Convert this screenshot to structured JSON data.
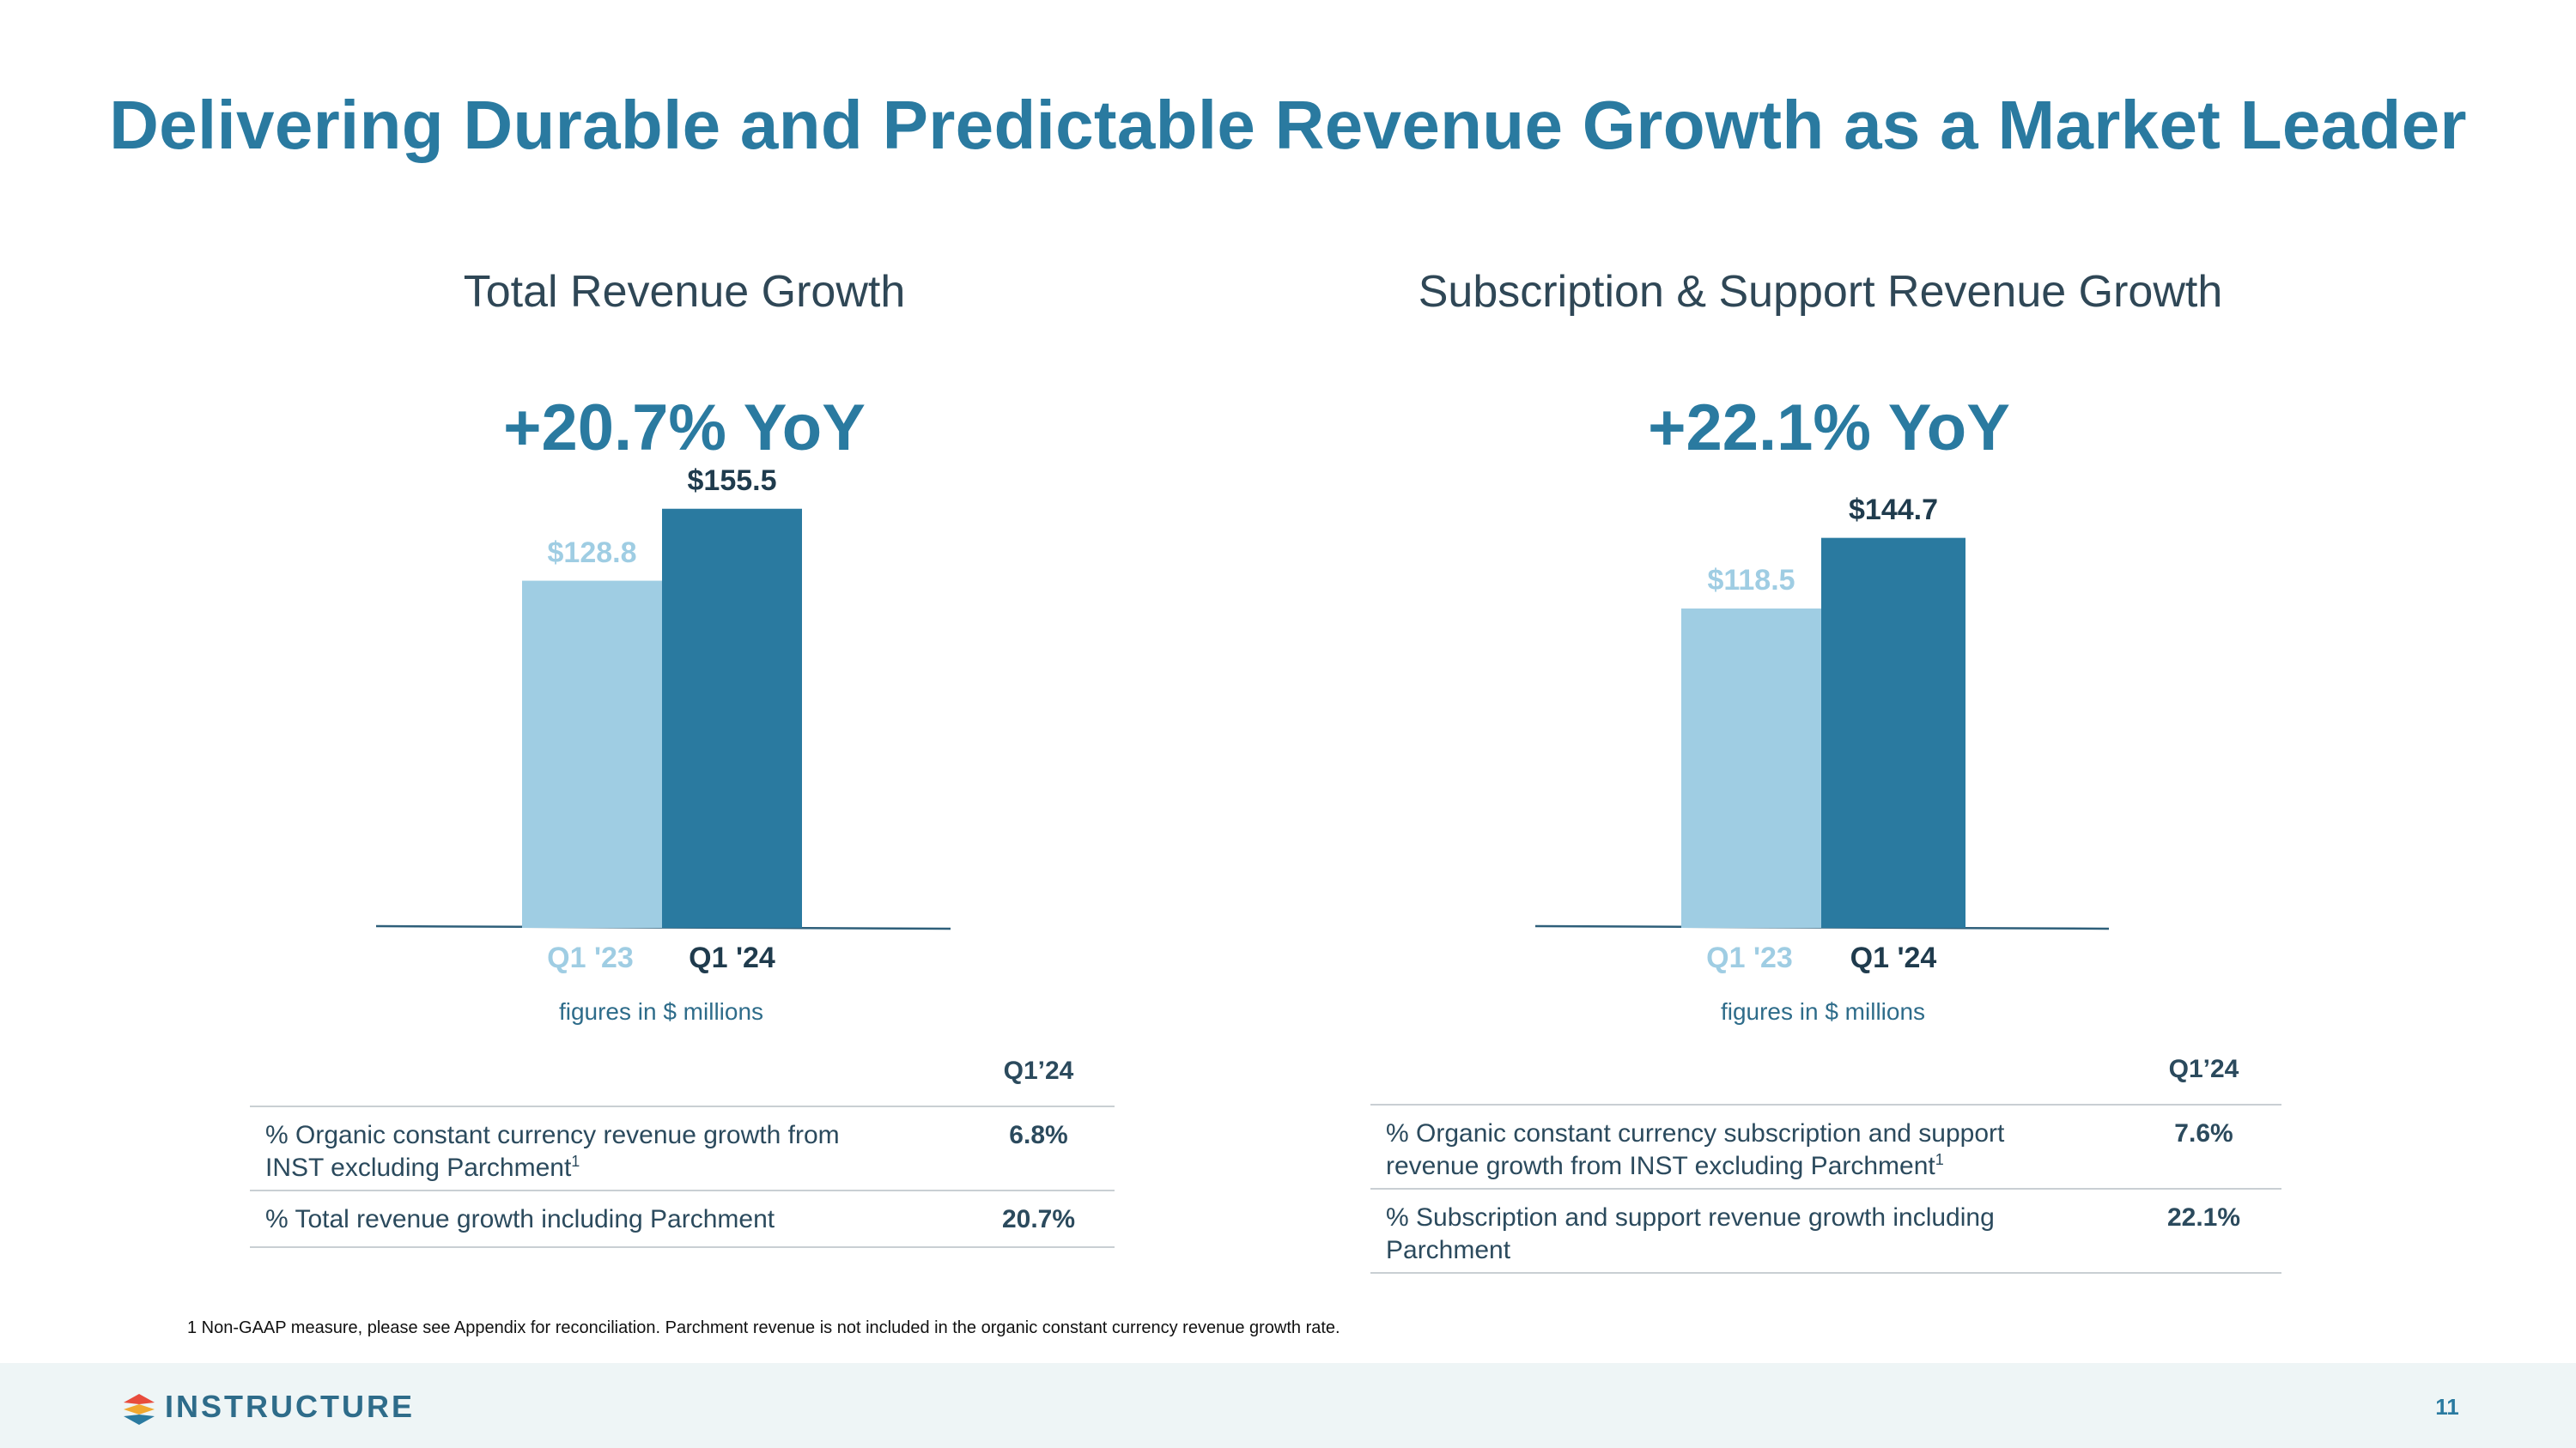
{
  "title": "Delivering Durable and Predictable Revenue Growth as a Market Leader",
  "colors": {
    "accent": "#2a7aa0",
    "bar_prior": "#9fcde3",
    "bar_current": "#2a7aa0",
    "label_current": "#1f3b4d",
    "label_prior": "#9fcde3"
  },
  "chart_data": [
    {
      "type": "bar",
      "title": "Total Revenue Growth",
      "headline": "+20.7% YoY",
      "categories": [
        "Q1 '23",
        "Q1 '24"
      ],
      "values": [
        128.8,
        155.5
      ],
      "value_labels": [
        "$128.8",
        "$155.5"
      ],
      "units_note": "figures in $ millions",
      "ylim": [
        0,
        165
      ]
    },
    {
      "type": "bar",
      "title": "Subscription & Support Revenue Growth",
      "headline": "+22.1% YoY",
      "categories": [
        "Q1 '23",
        "Q1 '24"
      ],
      "values": [
        118.5,
        144.7
      ],
      "value_labels": [
        "$118.5",
        "$144.7"
      ],
      "units_note": "figures in $ millions",
      "ylim": [
        0,
        165
      ]
    }
  ],
  "tables": [
    {
      "header": "Q1’24",
      "rows": [
        {
          "label": "% Organic constant currency revenue growth from",
          "label2": "INST excluding Parchment",
          "sup": "1",
          "value": "6.8%"
        },
        {
          "label": "% Total revenue growth including Parchment",
          "value": "20.7%"
        }
      ]
    },
    {
      "header": "Q1’24",
      "rows": [
        {
          "label": "% Organic constant currency subscription and support",
          "label2": "revenue growth from INST excluding Parchment",
          "sup": "1",
          "value": "7.6%"
        },
        {
          "label": "% Subscription and support revenue growth including",
          "label2": "Parchment",
          "value": "22.1%"
        }
      ]
    }
  ],
  "footnote": "1 Non-GAAP measure, please see Appendix for reconciliation. Parchment revenue is not included in the organic constant currency revenue growth rate.",
  "footer": {
    "logo_text": "INSTRUCTURE",
    "page_number": "11"
  }
}
